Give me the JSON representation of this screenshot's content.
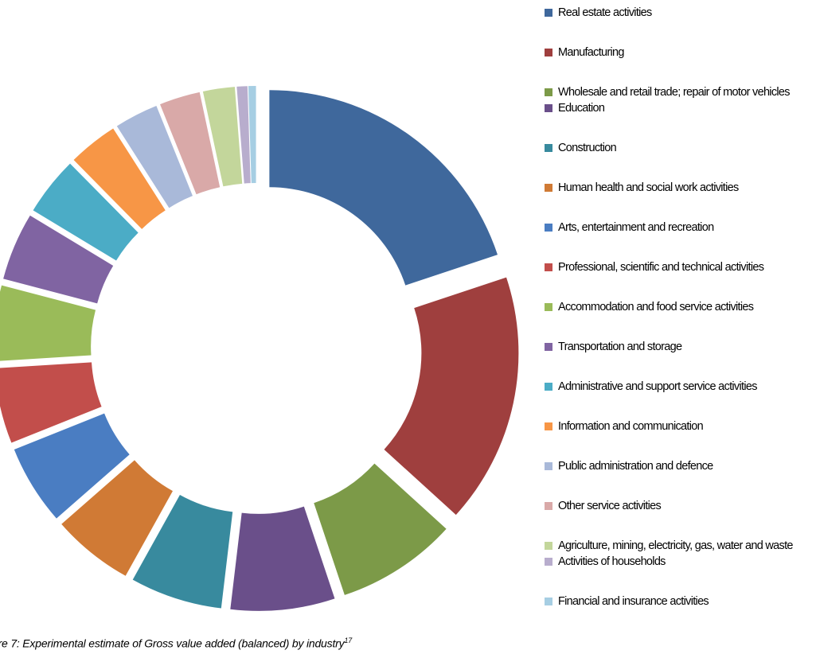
{
  "chart_data": {
    "type": "pie",
    "variant": "donut",
    "exploded": true,
    "title": "",
    "legend_position": "right",
    "slices": [
      {
        "label": "Real estate activities",
        "value": 19.6,
        "color": "#3F689C"
      },
      {
        "label": "Manufacturing",
        "value": 16.6,
        "color": "#9F3F3E"
      },
      {
        "label": "Wholesale and retail trade; repair of motor vehicles",
        "value": 8.0,
        "color": "#7C9A48"
      },
      {
        "label": "Education",
        "value": 6.9,
        "color": "#6A4F8A"
      },
      {
        "label": "Construction",
        "value": 6.1,
        "color": "#388A9E"
      },
      {
        "label": "Human health and social work activities",
        "value": 5.4,
        "color": "#D07A35"
      },
      {
        "label": "Arts, entertainment and recreation",
        "value": 5.3,
        "color": "#4A7DC2"
      },
      {
        "label": "Professional, scientific and technical activities",
        "value": 5.0,
        "color": "#C24E4B"
      },
      {
        "label": "Accommodation and food service activities",
        "value": 5.0,
        "color": "#9ABB59"
      },
      {
        "label": "Transportation and storage",
        "value": 4.5,
        "color": "#8064A2"
      },
      {
        "label": "Administrative and support service activities",
        "value": 3.9,
        "color": "#4BACC6"
      },
      {
        "label": "Information and communication",
        "value": 3.3,
        "color": "#F79646"
      },
      {
        "label": "Public administration and defence",
        "value": 2.9,
        "color": "#A9B9D9"
      },
      {
        "label": "Other service activities",
        "value": 2.7,
        "color": "#D9A9A8"
      },
      {
        "label": "Agriculture, mining, electricity, gas, water and waste",
        "value": 2.1,
        "color": "#C3D69B"
      },
      {
        "label": "Activities of households",
        "value": 0.7,
        "color": "#B8ADCD"
      },
      {
        "label": "Financial and insurance activities",
        "value": 0.5,
        "color": "#A6CEE3"
      }
    ]
  },
  "caption": {
    "text": "ure 7: Experimental estimate of Gross value added (balanced) by industry",
    "superscript": "17"
  }
}
